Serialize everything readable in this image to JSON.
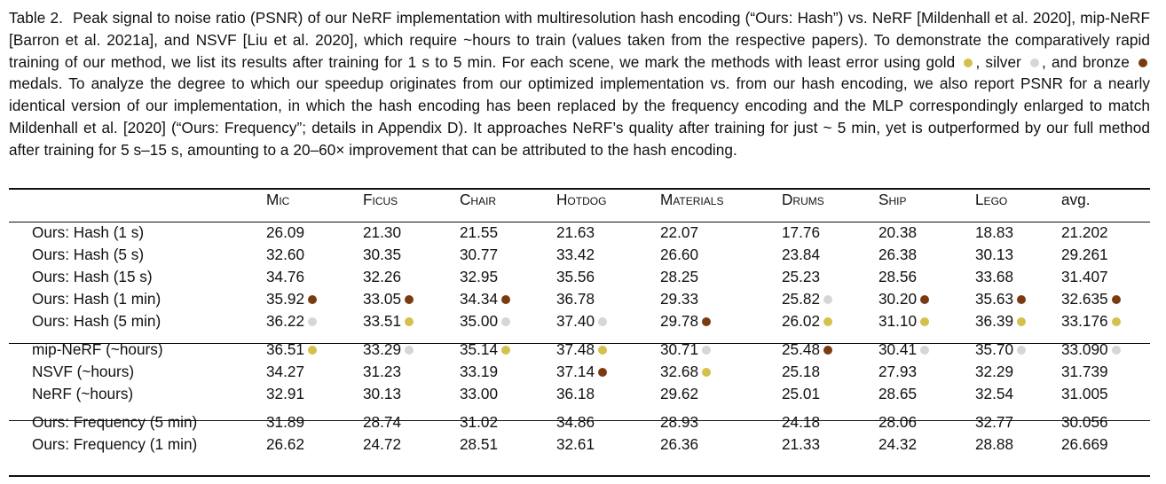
{
  "caption": {
    "label": "Table 2.",
    "part1": "Peak signal to noise ratio (PSNR) of our NeRF implementation with multiresolution hash encoding (“Ours: Hash”) vs. NeRF [Mildenhall et al. 2020], mip-NeRF [Barron et al. 2021a], and NSVF [Liu et al. 2020], which require ~hours to train (values taken from the respective papers). To demonstrate the comparatively rapid training of our method, we list its results after training for 1 s to 5 min. For each scene, we mark the methods with least error using gold",
    "part2": ", silver",
    "part3": ", and bronze",
    "part4": "medals. To analyze the degree to which our speedup originates from our optimized implementation vs. from our hash encoding, we also report PSNR for a nearly identical version of our implementation, in which the hash encoding has been replaced by the frequency encoding and the MLP correspondingly enlarged to match Mildenhall et al. [2020] (“Ours: Frequency”; details in Appendix D). It approaches NeRF’s quality after training for just ~ 5 min, yet is outperformed by our full method after training for 5 s–15 s, amounting to a 20–60× improvement that can be attributed to the hash encoding."
  },
  "medal_colors": {
    "gold": "#d4c04a",
    "silver": "#d6d6d6",
    "bronze": "#7a3b12"
  },
  "table": {
    "headers": [
      "Mic",
      "Ficus",
      "Chair",
      "Hotdog",
      "Materials",
      "Drums",
      "Ship",
      "Lego",
      "avg."
    ],
    "groups": [
      [
        {
          "method": "Ours: Hash (1 s)",
          "cells": [
            {
              "v": "26.09"
            },
            {
              "v": "21.30"
            },
            {
              "v": "21.55"
            },
            {
              "v": "21.63"
            },
            {
              "v": "22.07"
            },
            {
              "v": "17.76"
            },
            {
              "v": "20.38"
            },
            {
              "v": "18.83"
            },
            {
              "v": "21.202"
            }
          ]
        },
        {
          "method": "Ours: Hash (5 s)",
          "cells": [
            {
              "v": "32.60"
            },
            {
              "v": "30.35"
            },
            {
              "v": "30.77"
            },
            {
              "v": "33.42"
            },
            {
              "v": "26.60"
            },
            {
              "v": "23.84"
            },
            {
              "v": "26.38"
            },
            {
              "v": "30.13"
            },
            {
              "v": "29.261"
            }
          ]
        },
        {
          "method": "Ours: Hash (15 s)",
          "cells": [
            {
              "v": "34.76"
            },
            {
              "v": "32.26"
            },
            {
              "v": "32.95"
            },
            {
              "v": "35.56"
            },
            {
              "v": "28.25"
            },
            {
              "v": "25.23"
            },
            {
              "v": "28.56"
            },
            {
              "v": "33.68"
            },
            {
              "v": "31.407"
            }
          ]
        },
        {
          "method": "Ours: Hash (1 min)",
          "cells": [
            {
              "v": "35.92",
              "m": "bronze"
            },
            {
              "v": "33.05",
              "m": "bronze"
            },
            {
              "v": "34.34",
              "m": "bronze"
            },
            {
              "v": "36.78"
            },
            {
              "v": "29.33"
            },
            {
              "v": "25.82",
              "m": "silver"
            },
            {
              "v": "30.20",
              "m": "bronze"
            },
            {
              "v": "35.63",
              "m": "bronze"
            },
            {
              "v": "32.635",
              "m": "bronze"
            }
          ]
        },
        {
          "method": "Ours: Hash (5 min)",
          "cells": [
            {
              "v": "36.22",
              "m": "silver"
            },
            {
              "v": "33.51",
              "m": "gold"
            },
            {
              "v": "35.00",
              "m": "silver"
            },
            {
              "v": "37.40",
              "m": "silver"
            },
            {
              "v": "29.78",
              "m": "bronze"
            },
            {
              "v": "26.02",
              "m": "gold"
            },
            {
              "v": "31.10",
              "m": "gold"
            },
            {
              "v": "36.39",
              "m": "gold"
            },
            {
              "v": "33.176",
              "m": "gold"
            }
          ]
        }
      ],
      [
        {
          "method": "mip-NeRF (~hours)",
          "cells": [
            {
              "v": "36.51",
              "m": "gold"
            },
            {
              "v": "33.29",
              "m": "silver"
            },
            {
              "v": "35.14",
              "m": "gold"
            },
            {
              "v": "37.48",
              "m": "gold"
            },
            {
              "v": "30.71",
              "m": "silver"
            },
            {
              "v": "25.48",
              "m": "bronze"
            },
            {
              "v": "30.41",
              "m": "silver"
            },
            {
              "v": "35.70",
              "m": "silver"
            },
            {
              "v": "33.090",
              "m": "silver"
            }
          ]
        },
        {
          "method": "NSVF (~hours)",
          "cells": [
            {
              "v": "34.27"
            },
            {
              "v": "31.23"
            },
            {
              "v": "33.19"
            },
            {
              "v": "37.14",
              "m": "bronze"
            },
            {
              "v": "32.68",
              "m": "gold"
            },
            {
              "v": "25.18"
            },
            {
              "v": "27.93"
            },
            {
              "v": "32.29"
            },
            {
              "v": "31.739"
            }
          ]
        },
        {
          "method": "NeRF (~hours)",
          "cells": [
            {
              "v": "32.91"
            },
            {
              "v": "30.13"
            },
            {
              "v": "33.00"
            },
            {
              "v": "36.18"
            },
            {
              "v": "29.62"
            },
            {
              "v": "25.01"
            },
            {
              "v": "28.65"
            },
            {
              "v": "32.54"
            },
            {
              "v": "31.005"
            }
          ]
        }
      ],
      [
        {
          "method": "Ours: Frequency (5 min)",
          "cells": [
            {
              "v": "31.89"
            },
            {
              "v": "28.74"
            },
            {
              "v": "31.02"
            },
            {
              "v": "34.86"
            },
            {
              "v": "28.93"
            },
            {
              "v": "24.18"
            },
            {
              "v": "28.06"
            },
            {
              "v": "32.77"
            },
            {
              "v": "30.056"
            }
          ]
        },
        {
          "method": "Ours: Frequency (1 min)",
          "cells": [
            {
              "v": "26.62"
            },
            {
              "v": "24.72"
            },
            {
              "v": "28.51"
            },
            {
              "v": "32.61"
            },
            {
              "v": "26.36"
            },
            {
              "v": "21.33"
            },
            {
              "v": "24.32"
            },
            {
              "v": "28.88"
            },
            {
              "v": "26.669"
            }
          ]
        }
      ]
    ]
  }
}
